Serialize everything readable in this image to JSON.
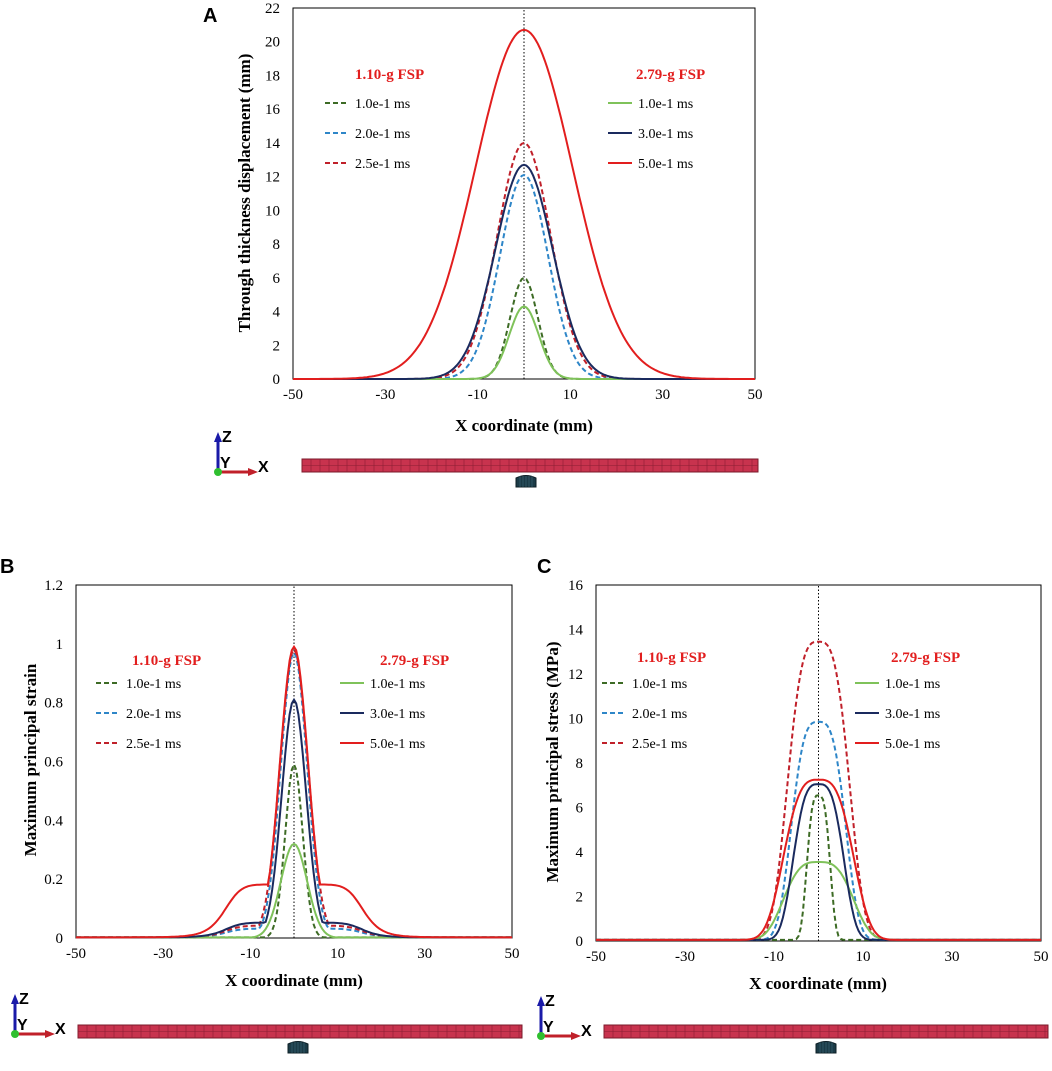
{
  "chart_data": [
    {
      "panel": "A",
      "type": "line",
      "ylabel": "Through thickness displacement  (mm)",
      "xlabel": "X coordinate (mm)",
      "xlim": [
        -50,
        50
      ],
      "ylim": [
        0,
        22
      ],
      "x_ticks": [
        "-50",
        "-30",
        "-10",
        "10",
        "30",
        "50"
      ],
      "y_ticks": [
        "0",
        "2",
        "4",
        "6",
        "8",
        "10",
        "12",
        "14",
        "16",
        "18",
        "20",
        "22"
      ],
      "legend_left_title": "1.10-g FSP",
      "legend_right_title": "2.79-g FSP",
      "series": [
        {
          "name": "1.0e-1 ms",
          "group": "1.10-g FSP",
          "style": "dashed",
          "color": "#3d6b25",
          "peak": 6.0,
          "width": 3.0
        },
        {
          "name": "2.0e-1 ms",
          "group": "1.10-g FSP",
          "style": "dashed",
          "color": "#2e86c8",
          "peak": 12.1,
          "width": 5.2
        },
        {
          "name": "2.5e-1 ms",
          "group": "1.10-g FSP",
          "style": "dashed",
          "color": "#c0202a",
          "peak": 14.0,
          "width": 5.8
        },
        {
          "name": "1.0e-1 ms",
          "group": "2.79-g FSP",
          "style": "solid",
          "color": "#7fc25a",
          "peak": 4.3,
          "width": 3.2
        },
        {
          "name": "3.0e-1 ms",
          "group": "2.79-g FSP",
          "style": "solid",
          "color": "#1a2a5e",
          "peak": 12.7,
          "width": 6.2
        },
        {
          "name": "5.0e-1 ms",
          "group": "2.79-g FSP",
          "style": "solid",
          "color": "#e21e1e",
          "peak": 20.7,
          "width": 10.5
        }
      ]
    },
    {
      "panel": "B",
      "type": "line",
      "ylabel": "Maximum principal strain",
      "xlabel": "X coordinate (mm)",
      "xlim": [
        -50,
        50
      ],
      "ylim": [
        0,
        1.2
      ],
      "x_ticks": [
        "-50",
        "-30",
        "-10",
        "10",
        "30",
        "50"
      ],
      "y_ticks": [
        "0",
        "0.2",
        "0.4",
        "0.6",
        "0.8",
        "1",
        "1.2"
      ],
      "legend_left_title": "1.10-g FSP",
      "legend_right_title": "2.79-g FSP",
      "series": [
        {
          "name": "1.0e-1 ms",
          "group": "1.10-g FSP",
          "style": "dashed",
          "color": "#3d6b25",
          "peak": 0.59,
          "width": 2.0,
          "shoulder": 0.0
        },
        {
          "name": "2.0e-1 ms",
          "group": "1.10-g FSP",
          "style": "dashed",
          "color": "#2e86c8",
          "peak": 0.97,
          "width": 3.0,
          "shoulder": 0.03
        },
        {
          "name": "2.5e-1 ms",
          "group": "1.10-g FSP",
          "style": "dashed",
          "color": "#c0202a",
          "peak": 0.98,
          "width": 3.2,
          "shoulder": 0.04
        },
        {
          "name": "1.0e-1 ms",
          "group": "2.79-g FSP",
          "style": "solid",
          "color": "#7fc25a",
          "peak": 0.32,
          "width": 3.0,
          "shoulder": 0.0
        },
        {
          "name": "3.0e-1 ms",
          "group": "2.79-g FSP",
          "style": "solid",
          "color": "#1a2a5e",
          "peak": 0.81,
          "width": 2.8,
          "shoulder": 0.05
        },
        {
          "name": "5.0e-1 ms",
          "group": "2.79-g FSP",
          "style": "solid",
          "color": "#e21e1e",
          "peak": 0.99,
          "width": 3.2,
          "shoulder": 0.18
        }
      ]
    },
    {
      "panel": "C",
      "type": "line",
      "ylabel": "Maximum principal stress (MPa)",
      "xlabel": "X coordinate (mm)",
      "xlim": [
        -50,
        50
      ],
      "ylim": [
        0,
        16
      ],
      "x_ticks": [
        "-50",
        "-30",
        "-10",
        "10",
        "30",
        "50"
      ],
      "y_ticks": [
        "0",
        "2",
        "4",
        "6",
        "8",
        "10",
        "12",
        "14",
        "16"
      ],
      "legend_left_title": "1.10-g FSP",
      "legend_right_title": "2.79-g FSP",
      "series": [
        {
          "name": "1.0e-1 ms",
          "group": "1.10-g FSP",
          "style": "dashed",
          "color": "#3d6b25",
          "peak": 6.5,
          "width": 3.0
        },
        {
          "name": "2.0e-1 ms",
          "group": "1.10-g FSP",
          "style": "dashed",
          "color": "#2e86c8",
          "peak": 9.8,
          "width": 7.0
        },
        {
          "name": "2.5e-1 ms",
          "group": "1.10-g FSP",
          "style": "dashed",
          "color": "#c0202a",
          "peak": 13.4,
          "width": 8.0
        },
        {
          "name": "1.0e-1 ms",
          "group": "2.79-g FSP",
          "style": "solid",
          "color": "#7fc25a",
          "peak": 3.5,
          "width": 9.0
        },
        {
          "name": "3.0e-1 ms",
          "group": "2.79-g FSP",
          "style": "solid",
          "color": "#1a2a5e",
          "peak": 7.0,
          "width": 6.5
        },
        {
          "name": "5.0e-1 ms",
          "group": "2.79-g FSP",
          "style": "solid",
          "color": "#e21e1e",
          "peak": 7.2,
          "width": 9.0
        }
      ]
    }
  ],
  "triad": {
    "z": "Z",
    "y": "Y",
    "x": "X"
  },
  "panel_letters": [
    "A",
    "B",
    "C"
  ]
}
